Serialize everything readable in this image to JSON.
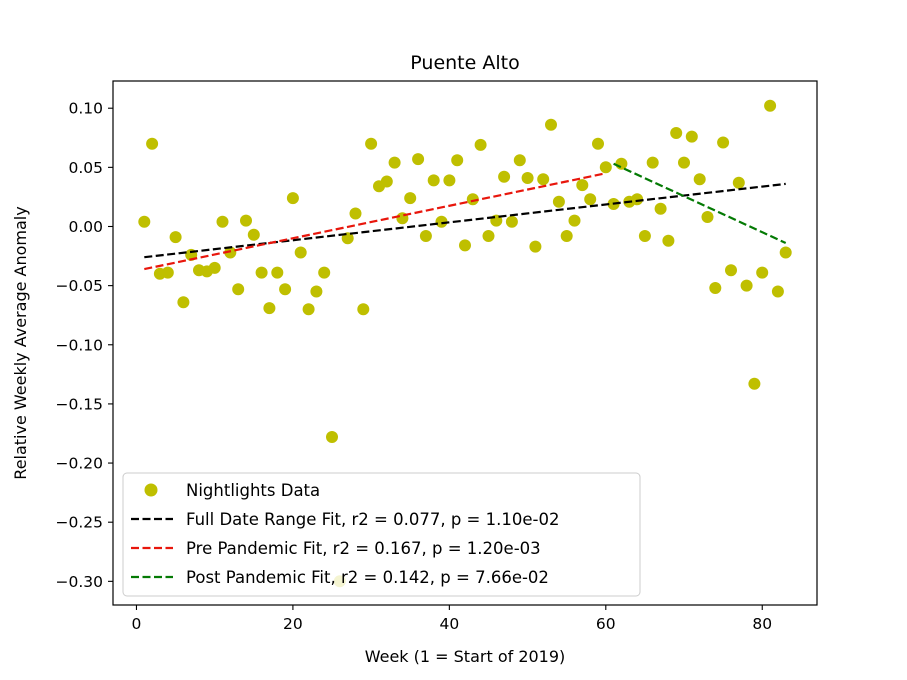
{
  "chart_data": {
    "type": "scatter",
    "title": "Puente Alto",
    "xlabel": "Week (1 = Start of 2019)",
    "ylabel": "Relative Weekly Average Anomaly",
    "xlim": [
      -3,
      87
    ],
    "ylim": [
      -0.32,
      0.123
    ],
    "xticks": [
      0,
      20,
      40,
      60,
      80
    ],
    "xtick_labels": [
      "0",
      "20",
      "40",
      "60",
      "80"
    ],
    "yticks": [
      0.1,
      0.05,
      0.0,
      -0.05,
      -0.1,
      -0.15,
      -0.2,
      -0.25,
      -0.3
    ],
    "ytick_labels": [
      "0.10",
      "0.05",
      "0.00",
      "−0.05",
      "−0.10",
      "−0.15",
      "−0.20",
      "−0.25",
      "−0.30"
    ],
    "grid": false,
    "legend_position": "lower-left",
    "colors": {
      "points": "#bfbf00",
      "full_fit": "#000000",
      "pre_fit": "#e8160c",
      "post_fit": "#047a04"
    },
    "series": [
      {
        "name": "Nightlights Data",
        "kind": "scatter",
        "color": "#bfbf00",
        "x": [
          1,
          2,
          3,
          4,
          5,
          6,
          7,
          8,
          9,
          10,
          11,
          12,
          13,
          14,
          15,
          16,
          17,
          18,
          19,
          20,
          21,
          22,
          23,
          24,
          25,
          26,
          27,
          28,
          29,
          30,
          31,
          32,
          33,
          34,
          35,
          36,
          37,
          38,
          39,
          40,
          41,
          42,
          43,
          44,
          45,
          46,
          47,
          48,
          49,
          50,
          51,
          52,
          53,
          54,
          55,
          56,
          57,
          58,
          59,
          60,
          61,
          62,
          63,
          64,
          65,
          66,
          67,
          68,
          69,
          70,
          71,
          72,
          73,
          74,
          75,
          76,
          77,
          78,
          79,
          80,
          81,
          82,
          83
        ],
        "y": [
          0.004,
          0.07,
          -0.04,
          -0.039,
          -0.009,
          -0.064,
          -0.024,
          -0.037,
          -0.038,
          -0.035,
          0.004,
          -0.022,
          -0.053,
          0.005,
          -0.007,
          -0.039,
          -0.069,
          -0.039,
          -0.053,
          0.024,
          -0.022,
          -0.07,
          -0.055,
          -0.039,
          -0.178,
          -0.3,
          -0.01,
          0.011,
          -0.07,
          0.07,
          0.034,
          0.038,
          0.054,
          0.007,
          0.024,
          0.057,
          -0.008,
          0.039,
          0.004,
          0.039,
          0.056,
          -0.016,
          0.023,
          0.069,
          -0.008,
          0.005,
          0.042,
          0.004,
          0.056,
          0.041,
          -0.017,
          0.04,
          0.086,
          0.021,
          -0.008,
          0.005,
          0.035,
          0.023,
          0.07,
          0.05,
          0.019,
          0.053,
          0.021,
          0.023,
          -0.008,
          0.054,
          0.015,
          -0.012,
          0.079,
          0.054,
          0.076,
          0.04,
          0.008,
          -0.052,
          0.071,
          -0.037,
          0.037,
          -0.05,
          -0.133,
          -0.039,
          0.102,
          -0.055,
          -0.022
        ]
      },
      {
        "name": "Full Date Range Fit, r2 = 0.077, p = 1.10e-02",
        "kind": "line",
        "color": "#000000",
        "x": [
          1,
          83
        ],
        "y": [
          -0.026,
          0.036
        ]
      },
      {
        "name": "Pre Pandemic Fit, r2 = 0.167, p = 1.20e-03",
        "kind": "line",
        "color": "#e8160c",
        "x": [
          1,
          60
        ],
        "y": [
          -0.036,
          0.045
        ]
      },
      {
        "name": "Post Pandemic Fit, r2 = 0.142, p = 7.66e-02",
        "kind": "line",
        "color": "#047a04",
        "x": [
          61,
          83
        ],
        "y": [
          0.053,
          -0.014
        ]
      }
    ]
  }
}
